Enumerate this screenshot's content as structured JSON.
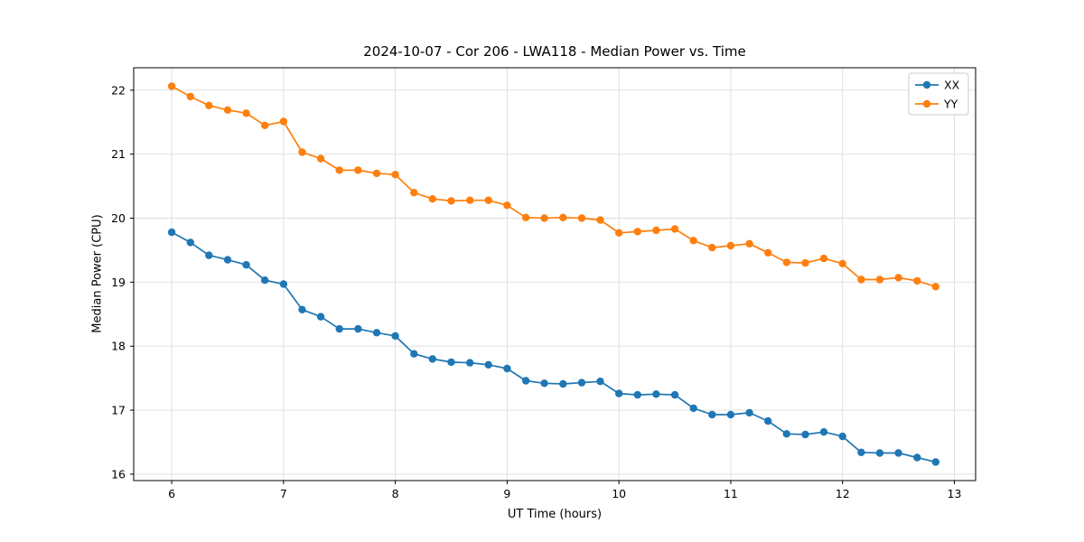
{
  "chart_data": {
    "type": "line",
    "title": "2024-10-07 - Cor 206 - LWA118 - Median Power vs. Time",
    "xlabel": "UT Time (hours)",
    "ylabel": "Median Power (CPU)",
    "xlim": [
      5.66,
      13.19
    ],
    "ylim": [
      15.9,
      22.35
    ],
    "xticks": [
      6,
      7,
      8,
      9,
      10,
      11,
      12,
      13
    ],
    "yticks": [
      16,
      17,
      18,
      19,
      20,
      21,
      22
    ],
    "grid": true,
    "legend_position": "upper right",
    "x": [
      6.0,
      6.167,
      6.333,
      6.5,
      6.667,
      6.833,
      7.0,
      7.167,
      7.333,
      7.5,
      7.667,
      7.833,
      8.0,
      8.167,
      8.333,
      8.5,
      8.667,
      8.833,
      9.0,
      9.167,
      9.333,
      9.5,
      9.667,
      9.833,
      10.0,
      10.167,
      10.333,
      10.5,
      10.667,
      10.833,
      11.0,
      11.167,
      11.333,
      11.5,
      11.667,
      11.833,
      12.0,
      12.167,
      12.333,
      12.5,
      12.667,
      12.833
    ],
    "series": [
      {
        "name": "XX",
        "color": "#1f77b4",
        "values": [
          19.78,
          19.62,
          19.42,
          19.35,
          19.27,
          19.03,
          18.97,
          18.57,
          18.46,
          18.27,
          18.27,
          18.21,
          18.16,
          17.88,
          17.8,
          17.75,
          17.74,
          17.71,
          17.65,
          17.46,
          17.42,
          17.41,
          17.43,
          17.45,
          17.26,
          17.24,
          17.25,
          17.24,
          17.03,
          16.93,
          16.93,
          16.96,
          16.83,
          16.63,
          16.62,
          16.66,
          16.59,
          16.34,
          16.33,
          16.33,
          16.26,
          16.19
        ]
      },
      {
        "name": "YY",
        "color": "#ff7f0e",
        "values": [
          22.06,
          21.9,
          21.76,
          21.69,
          21.64,
          21.45,
          21.51,
          21.03,
          20.93,
          20.75,
          20.75,
          20.7,
          20.68,
          20.4,
          20.3,
          20.27,
          20.28,
          20.28,
          20.2,
          20.01,
          20.0,
          20.01,
          20.0,
          19.97,
          19.77,
          19.79,
          19.81,
          19.83,
          19.65,
          19.54,
          19.57,
          19.6,
          19.46,
          19.31,
          19.3,
          19.37,
          19.29,
          19.04,
          19.04,
          19.07,
          19.02,
          18.93
        ]
      }
    ],
    "colors": {
      "grid": "#dddddd",
      "spine": "#000000",
      "legend_border": "#cccccc",
      "background": "#ffffff"
    }
  }
}
